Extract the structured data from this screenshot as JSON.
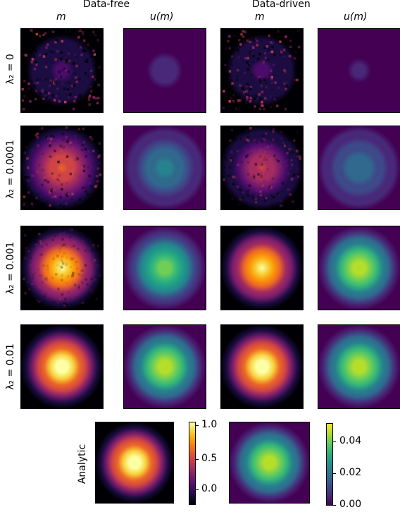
{
  "headers": {
    "data_free": "Data-free",
    "data_driven": "Data-driven",
    "col_m_1": "m",
    "col_u_1": "u(m)",
    "col_m_2": "m",
    "col_u_2": "u(m)"
  },
  "rows": [
    {
      "label": "λ₂ = 0"
    },
    {
      "label": "λ₂ = 0.0001"
    },
    {
      "label": "λ₂ = 0.001"
    },
    {
      "label": "λ₂ = 0.01"
    }
  ],
  "analytic_label": "Analytic",
  "colorbar_m": {
    "colormap": "inferno",
    "range": [
      -0.1,
      1.0
    ],
    "ticks": [
      "1.0",
      "0.5",
      "0.0"
    ]
  },
  "colorbar_u": {
    "colormap": "viridis",
    "range": [
      0.0,
      0.05
    ],
    "ticks": [
      "0.04",
      "0.02",
      "0.00"
    ]
  }
}
